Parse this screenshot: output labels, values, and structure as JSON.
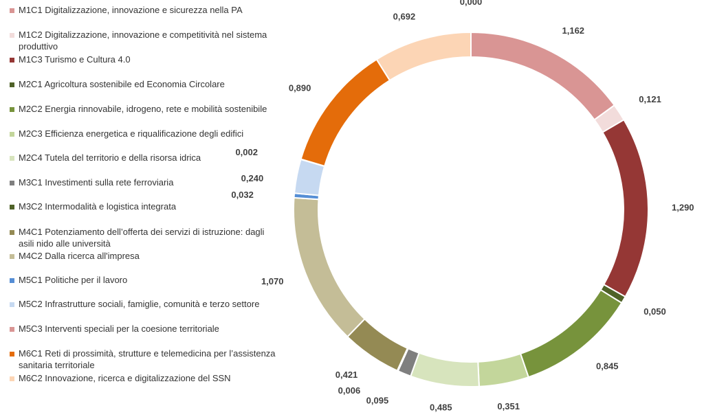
{
  "chart_data": {
    "type": "pie",
    "variant": "donut",
    "legend_position": "left",
    "series": [
      {
        "name": "M1C1 Digitalizzazione, innovazione e sicurezza nella PA",
        "value": 1.162,
        "label": "1,162",
        "color": "#D99594"
      },
      {
        "name": "M1C2 Digitalizzazione, innovazione e competitività nel sistema produttivo",
        "value": 0.121,
        "label": "0,121",
        "color": "#F2DCDB"
      },
      {
        "name": "M1C3 Turismo e Cultura 4.0",
        "value": 1.29,
        "label": "1,290",
        "color": "#953735"
      },
      {
        "name": "M2C1 Agricoltura sostenibile ed Economia Circolare",
        "value": 0.05,
        "label": "0,050",
        "color": "#4F6228"
      },
      {
        "name": "M2C2 Energia rinnovabile, idrogeno, rete e mobilità sostenibile",
        "value": 0.845,
        "label": "0,845",
        "color": "#77933C"
      },
      {
        "name": "M2C3 Efficienza energetica e riqualificazione degli edifici",
        "value": 0.351,
        "label": "0,351",
        "color": "#C3D69B"
      },
      {
        "name": "M2C4 Tutela del territorio e della risorsa idrica",
        "value": 0.485,
        "label": "0,485",
        "color": "#D7E4BD"
      },
      {
        "name": "M3C1 Investimenti sulla rete ferroviaria",
        "value": 0.095,
        "label": "0,095",
        "color": "#7F7F7F"
      },
      {
        "name": "M3C2 Intermodalità e logistica integrata",
        "value": 0.006,
        "label": "0,006",
        "color": "#4F6228"
      },
      {
        "name": "M4C1 Potenziamento dell’offerta dei servizi di istruzione: dagli asili nido alle università",
        "value": 0.421,
        "label": "0,421",
        "color": "#948A54"
      },
      {
        "name": "M4C2 Dalla ricerca all'impresa",
        "value": 1.07,
        "label": "1,070",
        "color": "#C4BD97"
      },
      {
        "name": "M5C1 Politiche per il lavoro",
        "value": 0.032,
        "label": "0,032",
        "color": "#558ED5"
      },
      {
        "name": "M5C2 Infrastrutture sociali, famiglie, comunità e terzo settore",
        "value": 0.24,
        "label": "0,240",
        "color": "#C6D9F1"
      },
      {
        "name": "M5C3 Interventi speciali per la coesione territoriale",
        "value": 0.002,
        "label": "0,002",
        "color": "#D99594"
      },
      {
        "name": "M6C1 Reti di prossimità, strutture e telemedicina per l’assistenza sanitaria territoriale",
        "value": 0.89,
        "label": "0,890",
        "color": "#E46C0A"
      },
      {
        "name": "M6C2 Innovazione, ricerca e digitalizzazione del SSN",
        "value": 0.692,
        "label": "0,692",
        "color": "#FCD5B5"
      },
      {
        "name": "",
        "value": 0.0,
        "label": "0,000",
        "color": "#D99594"
      }
    ]
  }
}
